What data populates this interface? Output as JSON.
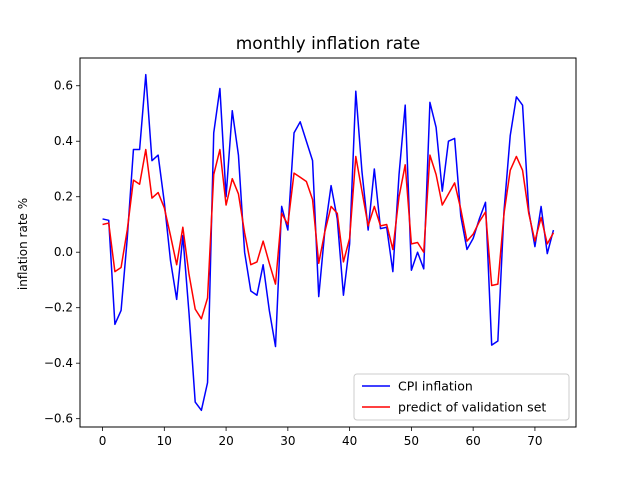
{
  "chart_data": {
    "type": "line",
    "title": "monthly inflation rate",
    "xlabel": "",
    "ylabel": "inflation rate %",
    "xlim": [
      -3.65,
      76.65
    ],
    "ylim": [
      -0.63,
      0.7
    ],
    "xticks": [
      0,
      10,
      20,
      30,
      40,
      50,
      60,
      70
    ],
    "yticks": [
      -0.6,
      -0.4,
      -0.2,
      0.0,
      0.2,
      0.4,
      0.6
    ],
    "ytick_labels": [
      "−0.6",
      "−0.4",
      "−0.2",
      "0.0",
      "0.2",
      "0.4",
      "0.6"
    ],
    "grid": false,
    "legend_position": "lower-right",
    "x": [
      0,
      1,
      2,
      3,
      4,
      5,
      6,
      7,
      8,
      9,
      10,
      11,
      12,
      13,
      14,
      15,
      16,
      17,
      18,
      19,
      20,
      21,
      22,
      23,
      24,
      25,
      26,
      27,
      28,
      29,
      30,
      31,
      32,
      33,
      34,
      35,
      36,
      37,
      38,
      39,
      40,
      41,
      42,
      43,
      44,
      45,
      46,
      47,
      48,
      49,
      50,
      51,
      52,
      53,
      54,
      55,
      56,
      57,
      58,
      59,
      60,
      61,
      62,
      63,
      64,
      65,
      66,
      67,
      68,
      69,
      70,
      71,
      72,
      73
    ],
    "series": [
      {
        "name": "CPI inflation",
        "color": "#0000ff",
        "values": [
          0.12,
          0.115,
          -0.26,
          -0.21,
          0.05,
          0.37,
          0.37,
          0.64,
          0.33,
          0.35,
          0.18,
          -0.03,
          -0.17,
          0.06,
          -0.22,
          -0.54,
          -0.57,
          -0.47,
          0.43,
          0.59,
          0.2,
          0.51,
          0.35,
          0.0,
          -0.14,
          -0.155,
          -0.045,
          -0.21,
          -0.34,
          0.165,
          0.08,
          0.43,
          0.47,
          0.4,
          0.33,
          -0.16,
          0.08,
          0.24,
          0.12,
          -0.155,
          0.03,
          0.58,
          0.29,
          0.08,
          0.3,
          0.085,
          0.09,
          -0.07,
          0.28,
          0.53,
          -0.065,
          0.0,
          -0.06,
          0.54,
          0.45,
          0.22,
          0.4,
          0.41,
          0.13,
          0.01,
          0.05,
          0.12,
          0.18,
          -0.335,
          -0.32,
          0.15,
          0.42,
          0.56,
          0.53,
          0.15,
          0.02,
          0.165,
          -0.005,
          0.08
        ]
      },
      {
        "name": "predict of validation set",
        "color": "#ff0000",
        "values": [
          0.1,
          0.105,
          -0.07,
          -0.055,
          0.08,
          0.26,
          0.245,
          0.37,
          0.195,
          0.215,
          0.16,
          0.06,
          -0.045,
          0.09,
          -0.08,
          -0.205,
          -0.24,
          -0.165,
          0.28,
          0.37,
          0.17,
          0.265,
          0.21,
          0.07,
          -0.045,
          -0.035,
          0.04,
          -0.04,
          -0.115,
          0.14,
          0.1,
          0.285,
          0.27,
          0.255,
          0.19,
          -0.04,
          0.075,
          0.165,
          0.14,
          -0.035,
          0.05,
          0.345,
          0.22,
          0.095,
          0.165,
          0.095,
          0.1,
          0.01,
          0.2,
          0.315,
          0.03,
          0.035,
          0.0,
          0.35,
          0.28,
          0.17,
          0.21,
          0.25,
          0.155,
          0.04,
          0.065,
          0.11,
          0.145,
          -0.12,
          -0.115,
          0.14,
          0.295,
          0.345,
          0.295,
          0.14,
          0.04,
          0.125,
          0.03,
          0.07
        ]
      }
    ]
  }
}
